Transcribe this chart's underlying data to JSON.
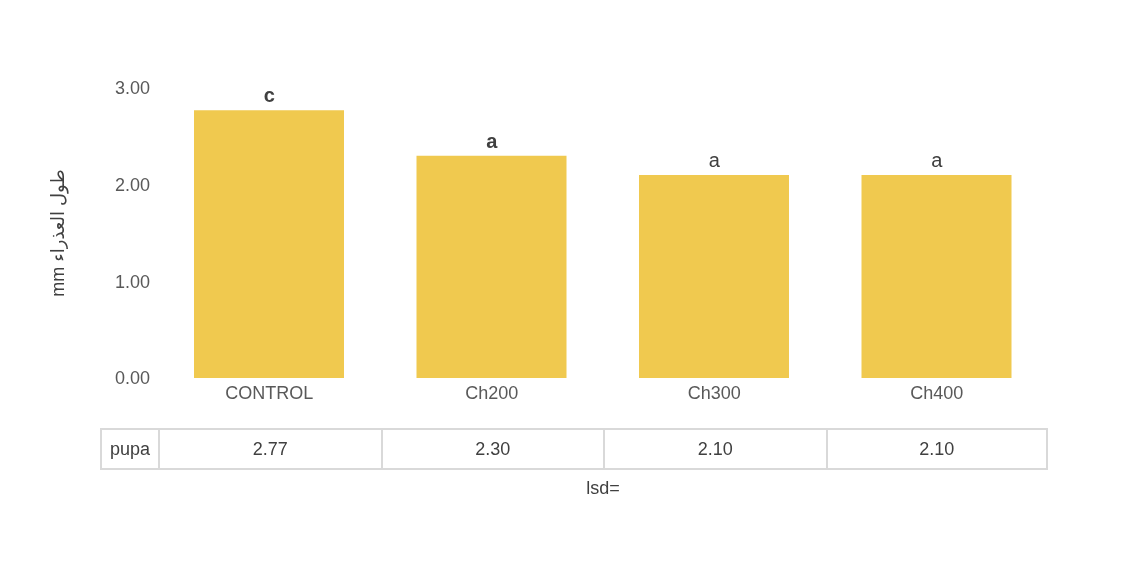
{
  "chart_data": {
    "type": "bar",
    "xlabel": "lsd=",
    "ylabel": "طول العذراء mm",
    "categories": [
      "CONTROL",
      "Ch200",
      "Ch300",
      "Ch400"
    ],
    "series": [
      {
        "name": "pupa",
        "color": "#f0c94f",
        "values": [
          2.77,
          2.3,
          2.1,
          2.1
        ],
        "value_labels": [
          "2.77",
          "2.30",
          "2.10",
          "2.10"
        ]
      }
    ],
    "ylim": [
      0,
      3
    ],
    "yticks": [
      {
        "value": 0,
        "label": "0.00"
      },
      {
        "value": 1,
        "label": "1.00"
      },
      {
        "value": 2,
        "label": "2.00"
      },
      {
        "value": 3,
        "label": "3.00"
      }
    ],
    "annotations": [
      {
        "text": "c",
        "x": "CONTROL",
        "y": 2.77
      },
      {
        "text": "a",
        "x": "Ch200",
        "y": 2.3
      },
      {
        "text": "a",
        "x": "Ch300",
        "y": 2.1
      },
      {
        "text": "a",
        "x": "Ch400",
        "y": 2.1
      }
    ],
    "grid": false,
    "legend": false
  }
}
